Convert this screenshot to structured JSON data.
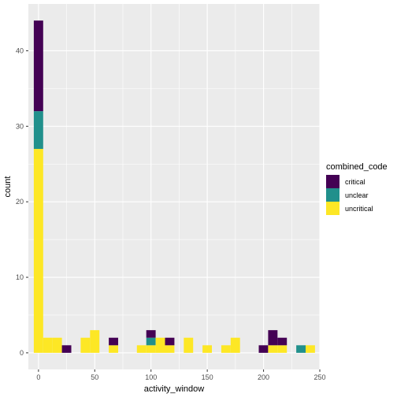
{
  "chart_data": {
    "type": "bar",
    "subtype": "stacked-histogram",
    "xlabel": "activity_window",
    "ylabel": "count",
    "xlim": [
      -9,
      250
    ],
    "ylim": [
      -2.2,
      46.2
    ],
    "x_ticks": [
      0,
      50,
      100,
      150,
      200,
      250
    ],
    "y_ticks": [
      0,
      10,
      20,
      30,
      40
    ],
    "binwidth": 8.33,
    "grid": true,
    "legend": {
      "title": "combined_code",
      "placement": "right",
      "entries": [
        {
          "name": "critical",
          "color": "#440154"
        },
        {
          "name": "unclear",
          "color": "#21908C"
        },
        {
          "name": "uncritical",
          "color": "#FDE725"
        }
      ]
    },
    "series": [
      {
        "name": "critical",
        "color": "#440154",
        "values": [
          12,
          0,
          0,
          1,
          0,
          0,
          0,
          0,
          1,
          0,
          0,
          0,
          1,
          0,
          1,
          0,
          0,
          0,
          0,
          0,
          0,
          0,
          0,
          0,
          1,
          2,
          1,
          0,
          0,
          0
        ]
      },
      {
        "name": "unclear",
        "color": "#21908C",
        "values": [
          5,
          0,
          0,
          0,
          0,
          0,
          0,
          0,
          0,
          0,
          0,
          0,
          1,
          0,
          0,
          0,
          0,
          0,
          0,
          0,
          0,
          0,
          0,
          0,
          0,
          0,
          0,
          0,
          1,
          0
        ]
      },
      {
        "name": "uncritical",
        "color": "#FDE725",
        "values": [
          27,
          2,
          2,
          0,
          0,
          2,
          3,
          0,
          1,
          0,
          0,
          1,
          1,
          2,
          1,
          0,
          2,
          0,
          1,
          0,
          1,
          2,
          0,
          0,
          0,
          1,
          1,
          0,
          0,
          1
        ]
      }
    ]
  }
}
